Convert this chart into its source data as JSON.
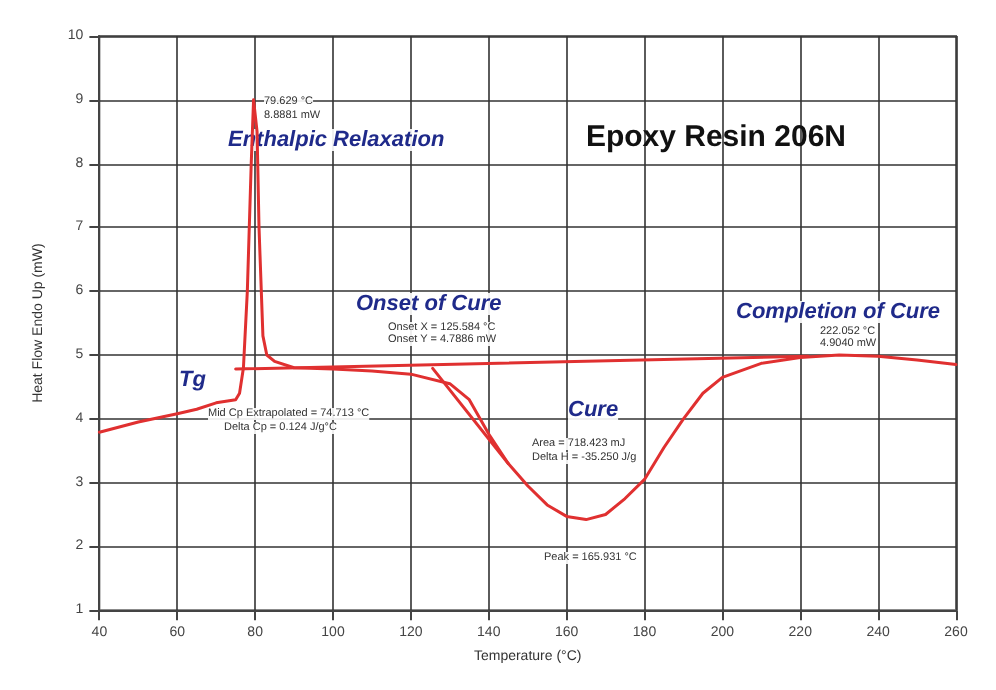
{
  "chart_data": {
    "type": "line",
    "title": "Epoxy Resin 206N",
    "xlabel": "Temperature (°C)",
    "ylabel": "Heat Flow Endo Up (mW)",
    "xlim": [
      40,
      260
    ],
    "xticks": [
      40,
      60,
      80,
      100,
      120,
      140,
      160,
      180,
      200,
      220,
      240,
      260
    ],
    "ylim": [
      1,
      10
    ],
    "yticks": [
      1,
      2,
      3,
      4,
      5,
      6,
      7,
      8,
      9,
      10
    ],
    "grid": true,
    "marker": "none",
    "line_style": "solid",
    "series": [
      {
        "color": "#e03030",
        "x": [
          40,
          50,
          60,
          65,
          70,
          75,
          76,
          77,
          78,
          79,
          79.6,
          80.5,
          81,
          82,
          83,
          85,
          90,
          100,
          110,
          120,
          130,
          135,
          140,
          145,
          150,
          155,
          160,
          165,
          170,
          175,
          180,
          185,
          190,
          195,
          200,
          210,
          220,
          230,
          240,
          250,
          260
        ],
        "values": [
          3.79,
          3.95,
          4.08,
          4.15,
          4.25,
          4.3,
          4.4,
          4.8,
          6,
          8,
          9,
          8.5,
          7,
          5.3,
          5,
          4.9,
          4.8,
          4.78,
          4.75,
          4.7,
          4.55,
          4.3,
          3.76,
          3.3,
          2.95,
          2.65,
          2.47,
          2.42,
          2.5,
          2.75,
          3.05,
          3.55,
          4,
          4.4,
          4.65,
          4.87,
          4.96,
          5,
          4.98,
          4.92,
          4.85
        ]
      },
      {
        "color": "#e03030",
        "x": [
          75,
          222
        ],
        "values": [
          4.78,
          4.98
        ]
      },
      {
        "color": "#e03030",
        "x": [
          125.6,
          145
        ],
        "values": [
          4.79,
          3.3
        ]
      }
    ],
    "annotations": [
      "Enthalpic Relaxation",
      "Onset of Cure",
      "Tg",
      "Cure",
      "Completion of Cure",
      "79.629 °C",
      "8.8881 mW",
      "Onset X = 125.584 °C",
      "Onset Y = 4.7886 mW",
      "Mid Cp Extrapolated = 74.713 °C",
      "Delta Cp = 0.124 J/g°C",
      "Area = 718.423 mJ",
      "Delta H = -35.250 J/g",
      "Peak = 165.931 °C",
      "222.052 °C",
      "4.9040 mW"
    ]
  }
}
